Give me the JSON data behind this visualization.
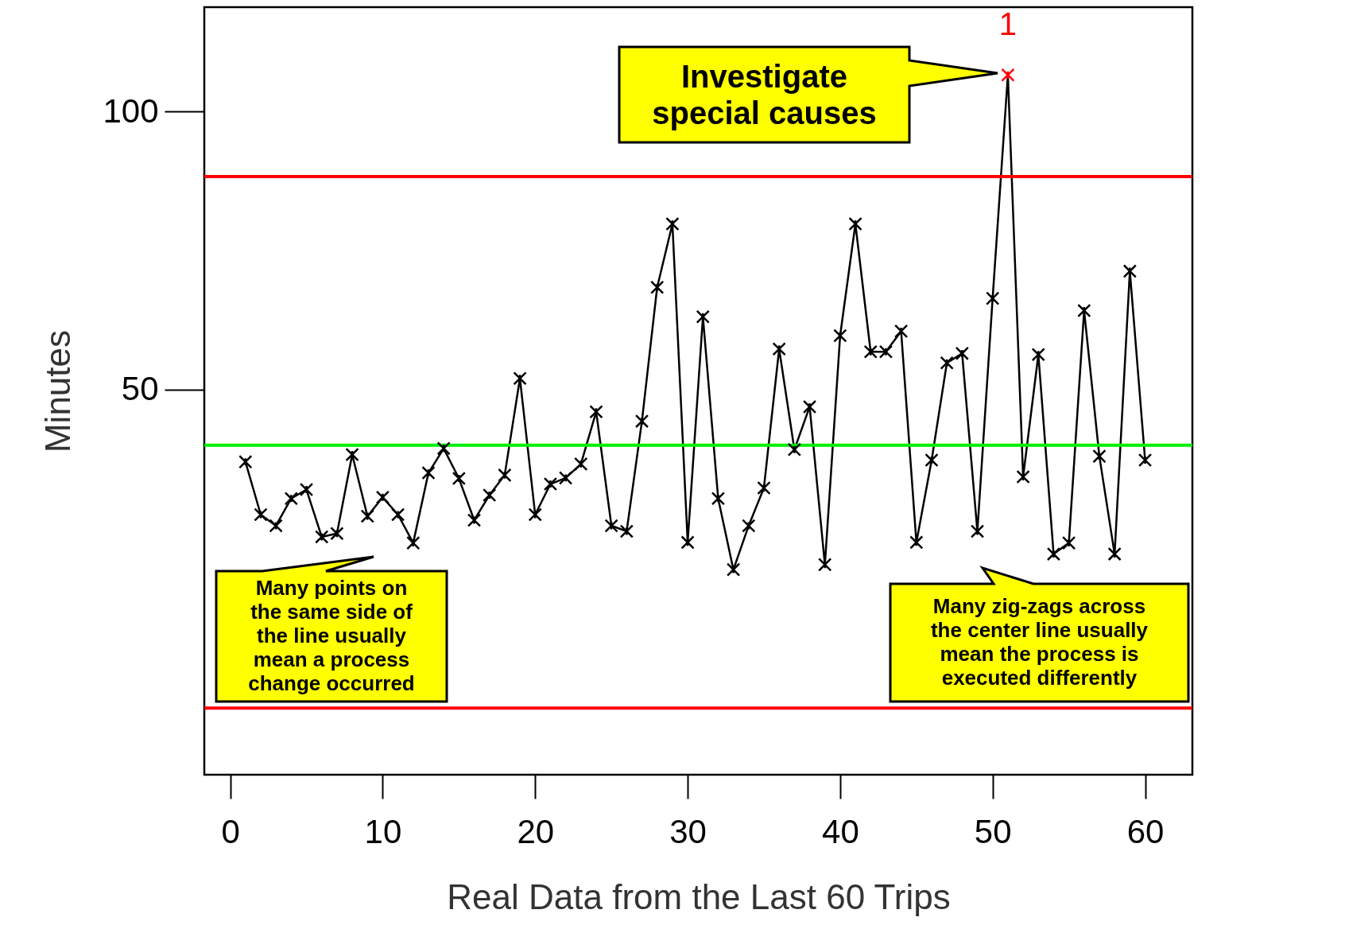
{
  "chart_data": {
    "type": "line",
    "xlabel": "Real Data from the Last 60 Trips",
    "ylabel": "Minutes",
    "x": [
      1,
      2,
      3,
      4,
      5,
      6,
      7,
      8,
      9,
      10,
      11,
      12,
      13,
      14,
      15,
      16,
      17,
      18,
      19,
      20,
      21,
      22,
      23,
      24,
      25,
      26,
      27,
      28,
      29,
      30,
      31,
      32,
      33,
      34,
      35,
      36,
      37,
      38,
      39,
      40,
      41,
      42,
      43,
      44,
      45,
      46,
      47,
      48,
      49,
      50,
      51,
      52,
      53,
      54,
      55,
      56,
      57,
      58,
      59,
      60
    ],
    "series": [
      {
        "color": "#000000",
        "values": [
          37.0,
          27.5,
          25.5,
          30.4,
          32.0,
          23.5,
          24.1,
          38.3,
          27.2,
          30.6,
          27.5,
          22.4,
          35.0,
          39.4,
          34.0,
          26.5,
          31.0,
          34.6,
          52.0,
          27.5,
          33.0,
          34.1,
          36.6,
          46.0,
          25.5,
          24.5,
          44.3,
          68.4,
          79.8,
          22.5,
          63.1,
          30.4,
          17.6,
          25.5,
          32.3,
          57.3,
          39.2,
          46.9,
          18.5,
          59.7,
          79.8,
          56.8,
          56.8,
          60.5,
          22.5,
          37.3,
          54.8,
          56.5,
          24.5,
          66.4,
          106.6,
          34.3,
          56.3,
          20.4,
          22.4,
          64.2,
          38.0,
          20.4,
          71.3,
          37.3
        ],
        "colors": [
          "#000000",
          "#000000",
          "#000000",
          "#000000",
          "#000000",
          "#000000",
          "#000000",
          "#000000",
          "#000000",
          "#000000",
          "#000000",
          "#000000",
          "#000000",
          "#000000",
          "#000000",
          "#000000",
          "#000000",
          "#000000",
          "#000000",
          "#000000",
          "#000000",
          "#000000",
          "#000000",
          "#000000",
          "#000000",
          "#000000",
          "#000000",
          "#000000",
          "#000000",
          "#000000",
          "#000000",
          "#000000",
          "#000000",
          "#000000",
          "#000000",
          "#000000",
          "#000000",
          "#000000",
          "#000000",
          "#000000",
          "#000000",
          "#000000",
          "#000000",
          "#000000",
          "#000000",
          "#000000",
          "#000000",
          "#000000",
          "#000000",
          "#000000",
          "#ff0000",
          "#000000",
          "#000000",
          "#000000",
          "#000000",
          "#000000",
          "#000000",
          "#000000",
          "#000000",
          "#000000"
        ]
      }
    ],
    "xlim": [
      -1.7,
      63.1
    ],
    "xticks": [
      0,
      10,
      20,
      30,
      40,
      50,
      60
    ],
    "ylim": [
      -19.3,
      118.8
    ],
    "yticks": [
      50,
      100
    ],
    "ref_lines": [
      {
        "axis": "y",
        "value": 88.3,
        "color": "#ff0000"
      },
      {
        "axis": "y",
        "value": 40.0,
        "color": "#00ee00"
      },
      {
        "axis": "y",
        "value": -7.3,
        "color": "#ff0000"
      }
    ],
    "annotations": [
      "Investigate\nspecial causes",
      "Many points on\nthe same side of\nthe line usually\nmean a process\nchange occurred",
      "Many zig-zags across\nthe center line usually\nmean the process is\nexecuted differently",
      {
        "text": "1",
        "x": 51,
        "y": 106.6
      }
    ],
    "grid": false,
    "marker": "cross",
    "line_style": "solid"
  }
}
